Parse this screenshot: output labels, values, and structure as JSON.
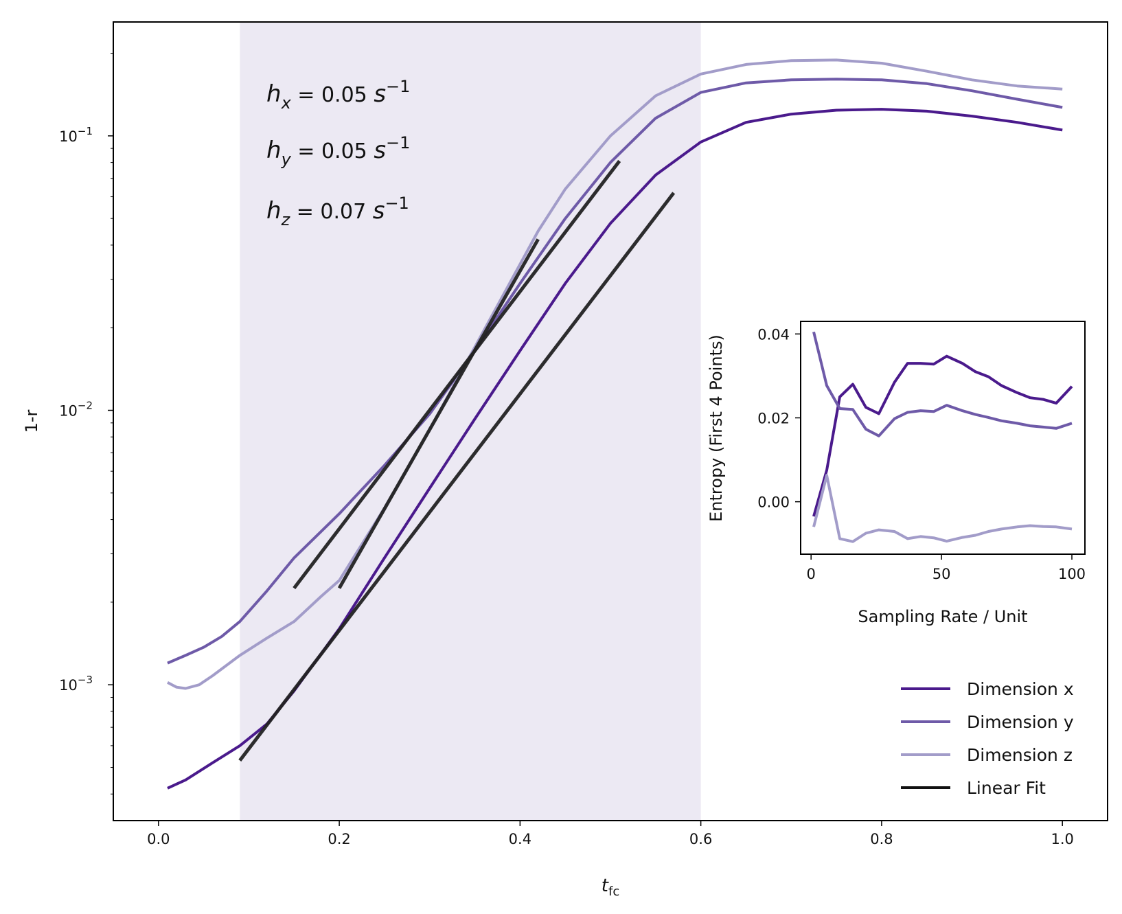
{
  "chart_data": [
    {
      "type": "line",
      "xlabel": "t",
      "xlabel_sub": "fc",
      "ylabel": "1-r",
      "yscale": "log",
      "xlim": [
        -0.05,
        1.05
      ],
      "ylim": [
        0.00032,
        0.26
      ],
      "x_ticks": [
        0.0,
        0.2,
        0.4,
        0.6,
        0.8,
        1.0
      ],
      "x_tick_labels": [
        "0.0",
        "0.2",
        "0.4",
        "0.6",
        "0.8",
        "1.0"
      ],
      "y_ticks": [
        0.001,
        0.01,
        0.1
      ],
      "y_tick_labels": [
        {
          "base": "10",
          "exp": "−3"
        },
        {
          "base": "10",
          "exp": "−2"
        },
        {
          "base": "10",
          "exp": "−1"
        }
      ],
      "shaded_region": {
        "x": [
          0.09,
          0.6
        ],
        "color": "#ece9f3"
      },
      "annotations": [
        {
          "sym": "h",
          "sub": "x",
          "text": " = 0.05 ",
          "unit": "s",
          "unit_exp": "−1"
        },
        {
          "sym": "h",
          "sub": "y",
          "text": " = 0.05 ",
          "unit": "s",
          "unit_exp": "−1"
        },
        {
          "sym": "h",
          "sub": "z",
          "text": " = 0.07 ",
          "unit": "s",
          "unit_exp": "−1"
        }
      ],
      "series": [
        {
          "name": "Dimension x",
          "color": "#4a1a8c",
          "x": [
            0.01,
            0.03,
            0.06,
            0.09,
            0.12,
            0.15,
            0.2,
            0.25,
            0.3,
            0.35,
            0.4,
            0.45,
            0.5,
            0.55,
            0.6,
            0.65,
            0.7,
            0.75,
            0.8,
            0.85,
            0.9,
            0.95,
            1.0
          ],
          "y": [
            0.00042,
            0.00045,
            0.00052,
            0.0006,
            0.00072,
            0.00095,
            0.0016,
            0.0029,
            0.0052,
            0.0093,
            0.0165,
            0.029,
            0.048,
            0.072,
            0.095,
            0.112,
            0.12,
            0.124,
            0.125,
            0.123,
            0.118,
            0.112,
            0.105
          ]
        },
        {
          "name": "Dimension y",
          "color": "#6e5aa8",
          "x": [
            0.01,
            0.03,
            0.05,
            0.07,
            0.09,
            0.12,
            0.15,
            0.2,
            0.25,
            0.3,
            0.35,
            0.4,
            0.45,
            0.5,
            0.55,
            0.6,
            0.65,
            0.7,
            0.75,
            0.8,
            0.85,
            0.9,
            0.95,
            1.0
          ],
          "y": [
            0.0012,
            0.00128,
            0.00137,
            0.0015,
            0.0017,
            0.0022,
            0.0029,
            0.0042,
            0.0063,
            0.0097,
            0.0165,
            0.029,
            0.05,
            0.08,
            0.116,
            0.144,
            0.156,
            0.16,
            0.161,
            0.16,
            0.155,
            0.146,
            0.136,
            0.127
          ]
        },
        {
          "name": "Dimension z",
          "color": "#a29cc9",
          "x": [
            0.01,
            0.02,
            0.03,
            0.045,
            0.06,
            0.09,
            0.12,
            0.15,
            0.18,
            0.2,
            0.25,
            0.3,
            0.35,
            0.42,
            0.45,
            0.5,
            0.55,
            0.6,
            0.65,
            0.7,
            0.75,
            0.8,
            0.85,
            0.9,
            0.95,
            1.0
          ],
          "y": [
            0.00102,
            0.00098,
            0.00097,
            0.001,
            0.00108,
            0.00128,
            0.00148,
            0.0017,
            0.0021,
            0.0024,
            0.0044,
            0.0085,
            0.017,
            0.045,
            0.064,
            0.1,
            0.14,
            0.168,
            0.182,
            0.188,
            0.189,
            0.184,
            0.172,
            0.16,
            0.152,
            0.148
          ]
        }
      ],
      "fit_lines": [
        {
          "name": "Linear Fit",
          "color": "#222222",
          "x": [
            0.09,
            0.57
          ],
          "y": [
            0.00053,
            0.062
          ]
        },
        {
          "name": "Linear Fit",
          "color": "#222222",
          "x": [
            0.15,
            0.51
          ],
          "y": [
            0.00225,
            0.081
          ]
        },
        {
          "name": "Linear Fit",
          "color": "#222222",
          "x": [
            0.2,
            0.42
          ],
          "y": [
            0.00225,
            0.042
          ]
        }
      ],
      "legend": {
        "placement": "lower-right",
        "entries": [
          {
            "label": "Dimension x",
            "color": "#4a1a8c"
          },
          {
            "label": "Dimension y",
            "color": "#6e5aa8"
          },
          {
            "label": "Dimension z",
            "color": "#a29cc9"
          },
          {
            "label": "Linear Fit",
            "color": "#111111"
          }
        ]
      }
    },
    {
      "type": "line",
      "placement": "inset right",
      "xlabel": "Sampling Rate / Unit",
      "ylabel": "Entropy (First 4 Points)",
      "xlim": [
        -4,
        105
      ],
      "ylim": [
        -0.0125,
        0.043
      ],
      "x_ticks": [
        0,
        50,
        100
      ],
      "x_tick_labels": [
        "0",
        "50",
        "100"
      ],
      "y_ticks": [
        0.0,
        0.02,
        0.04
      ],
      "y_tick_labels": [
        "0.00",
        "0.02",
        "0.04"
      ],
      "series": [
        {
          "name": "Dimension x",
          "color": "#4a1a8c",
          "x": [
            1,
            6,
            11,
            16,
            21,
            26,
            32,
            37,
            42,
            47,
            52,
            58,
            63,
            68,
            73,
            79,
            84,
            89,
            94,
            100
          ],
          "y": [
            -0.0035,
            0.0075,
            0.025,
            0.028,
            0.0225,
            0.021,
            0.0285,
            0.033,
            0.033,
            0.0328,
            0.0347,
            0.033,
            0.031,
            0.0298,
            0.0277,
            0.026,
            0.0248,
            0.0244,
            0.0235,
            0.0275
          ]
        },
        {
          "name": "Dimension y",
          "color": "#6e5aa8",
          "x": [
            1,
            6,
            11,
            16,
            21,
            26,
            32,
            37,
            42,
            47,
            52,
            58,
            63,
            68,
            73,
            79,
            84,
            89,
            94,
            100
          ],
          "y": [
            0.0405,
            0.0277,
            0.0222,
            0.022,
            0.0173,
            0.0157,
            0.0198,
            0.0213,
            0.0217,
            0.0215,
            0.023,
            0.0217,
            0.0208,
            0.0201,
            0.0193,
            0.0187,
            0.0181,
            0.0178,
            0.0175,
            0.0187
          ]
        },
        {
          "name": "Dimension z",
          "color": "#a29cc9",
          "x": [
            1,
            6,
            11,
            16,
            21,
            26,
            32,
            37,
            42,
            47,
            52,
            58,
            63,
            68,
            73,
            79,
            84,
            89,
            94,
            100
          ],
          "y": [
            -0.006,
            0.0063,
            -0.0088,
            -0.0095,
            -0.0075,
            -0.0067,
            -0.0071,
            -0.0088,
            -0.0083,
            -0.0086,
            -0.0094,
            -0.0085,
            -0.008,
            -0.0071,
            -0.0065,
            -0.006,
            -0.0057,
            -0.0059,
            -0.006,
            -0.0065
          ]
        }
      ]
    }
  ]
}
